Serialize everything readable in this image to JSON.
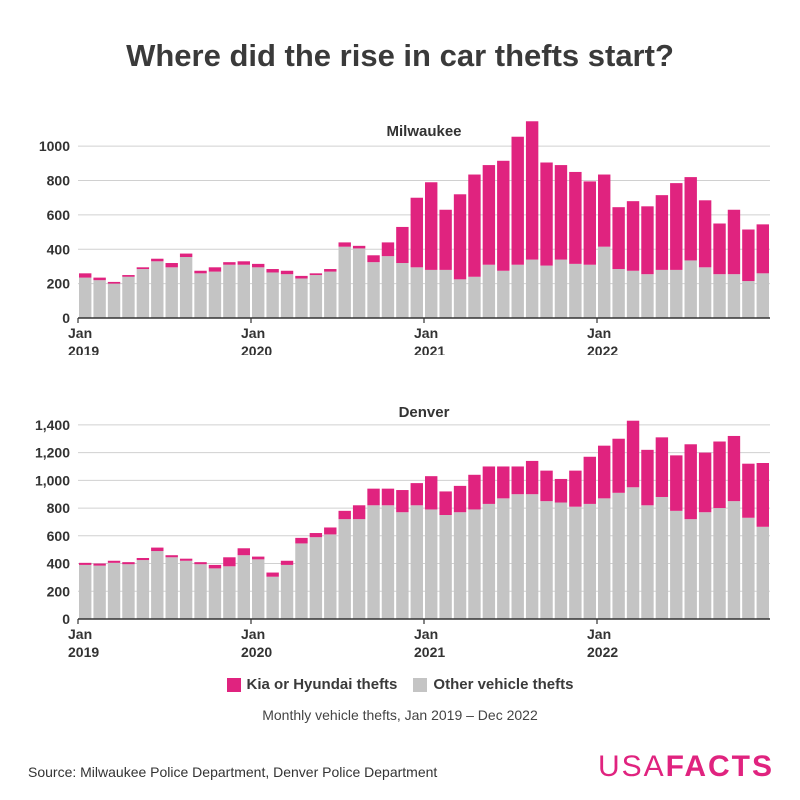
{
  "title": "Where did the rise in car thefts start?",
  "colors": {
    "kia": "#e0237f",
    "other": "#c4c4c4",
    "grid": "#d0d0d0",
    "axis": "#333333"
  },
  "chart_data": [
    {
      "type": "bar",
      "stacked": true,
      "title": "Milwaukee",
      "x_tick_labels": [
        {
          "index": 0,
          "line1": "Jan",
          "line2": "2019"
        },
        {
          "index": 12,
          "line1": "Jan",
          "line2": "2020"
        },
        {
          "index": 24,
          "line1": "Jan",
          "line2": "2021"
        },
        {
          "index": 36,
          "line1": "Jan",
          "line2": "2022"
        }
      ],
      "ylim": [
        0,
        1100
      ],
      "yticks": [
        0,
        200,
        400,
        600,
        800,
        1000
      ],
      "ytick_labels": [
        "0",
        "200",
        "400",
        "600",
        "800",
        "1000"
      ],
      "series": [
        {
          "name": "Other vehicle thefts",
          "values": [
            235,
            220,
            200,
            240,
            285,
            330,
            295,
            355,
            260,
            270,
            310,
            310,
            295,
            265,
            255,
            230,
            250,
            270,
            415,
            405,
            325,
            360,
            320,
            295,
            280,
            280,
            225,
            240,
            310,
            275,
            310,
            340,
            305,
            340,
            315,
            310,
            415,
            285,
            275,
            255,
            280,
            280,
            335,
            295,
            255,
            255,
            215,
            260
          ]
        },
        {
          "name": "Kia or Hyundai thefts",
          "values": [
            25,
            15,
            10,
            10,
            10,
            15,
            25,
            20,
            15,
            25,
            15,
            20,
            20,
            20,
            20,
            15,
            10,
            15,
            25,
            15,
            40,
            80,
            210,
            405,
            510,
            350,
            495,
            595,
            580,
            640,
            745,
            805,
            600,
            550,
            535,
            485,
            420,
            360,
            405,
            395,
            435,
            505,
            485,
            390,
            295,
            375,
            300,
            285
          ]
        }
      ]
    },
    {
      "type": "bar",
      "stacked": true,
      "title": "Denver",
      "x_tick_labels": [
        {
          "index": 0,
          "line1": "Jan",
          "line2": "2019"
        },
        {
          "index": 12,
          "line1": "Jan",
          "line2": "2020"
        },
        {
          "index": 24,
          "line1": "Jan",
          "line2": "2021"
        },
        {
          "index": 36,
          "line1": "Jan",
          "line2": "2022"
        }
      ],
      "ylim": [
        0,
        1500
      ],
      "yticks": [
        0,
        200,
        400,
        600,
        800,
        1000,
        1200,
        1400
      ],
      "ytick_labels": [
        "0",
        "200",
        "400",
        "600",
        "800",
        "1,000",
        "1,200",
        "1,400"
      ],
      "series": [
        {
          "name": "Other vehicle thefts",
          "values": [
            390,
            385,
            405,
            395,
            425,
            490,
            445,
            420,
            395,
            365,
            380,
            460,
            430,
            305,
            390,
            545,
            590,
            610,
            720,
            720,
            820,
            820,
            770,
            820,
            790,
            750,
            770,
            790,
            830,
            870,
            900,
            900,
            850,
            840,
            810,
            830,
            870,
            910,
            950,
            820,
            880,
            780,
            720,
            770,
            800,
            850,
            730,
            665
          ]
        },
        {
          "name": "Kia or Hyundai thefts",
          "values": [
            15,
            15,
            15,
            15,
            15,
            25,
            15,
            15,
            15,
            25,
            65,
            50,
            20,
            30,
            30,
            40,
            30,
            50,
            60,
            100,
            120,
            120,
            160,
            160,
            240,
            170,
            190,
            250,
            270,
            230,
            200,
            240,
            220,
            170,
            260,
            340,
            380,
            390,
            480,
            400,
            430,
            400,
            540,
            430,
            480,
            470,
            390,
            460
          ]
        }
      ]
    }
  ],
  "legend": {
    "kia_label": "Kia or Hyundai thefts",
    "other_label": "Other vehicle thefts"
  },
  "subtitle": "Monthly vehicle thefts, Jan 2019 – Dec 2022",
  "source": "Source: Milwaukee Police Department, Denver Police Department",
  "logo": {
    "part1": "USA",
    "part2": "FACTS"
  }
}
